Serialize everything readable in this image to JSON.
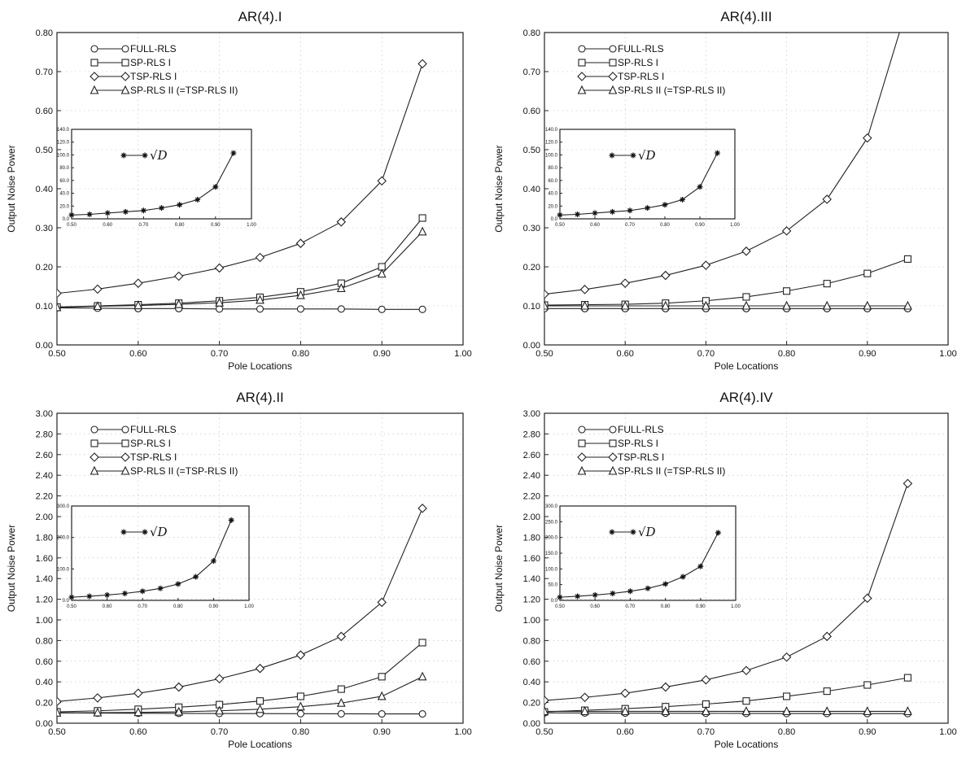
{
  "chart_data": [
    {
      "type": "line",
      "title": "AR(4).I",
      "xlabel": "Pole Locations",
      "ylabel": "Output Noise Power",
      "xlim": [
        0.5,
        1.0
      ],
      "ylim": [
        0,
        0.8
      ],
      "xticks": [
        "0.50",
        "0.60",
        "0.70",
        "0.80",
        "0.90",
        "1.00"
      ],
      "yticks": [
        "0.00",
        "0.10",
        "0.20",
        "0.30",
        "0.40",
        "0.50",
        "0.60",
        "0.70",
        "0.80"
      ],
      "grid": true,
      "legend_position": "top-left",
      "x": [
        0.5,
        0.55,
        0.6,
        0.65,
        0.7,
        0.75,
        0.8,
        0.85,
        0.9,
        0.95
      ],
      "series": [
        {
          "name": "FULL-RLS",
          "marker": "circle",
          "values": [
            0.095,
            0.094,
            0.093,
            0.093,
            0.092,
            0.092,
            0.092,
            0.092,
            0.091,
            0.091
          ]
        },
        {
          "name": "SP-RLS I",
          "marker": "square",
          "values": [
            0.097,
            0.1,
            0.103,
            0.107,
            0.113,
            0.122,
            0.136,
            0.158,
            0.2,
            0.325
          ]
        },
        {
          "name": "TSP-RLS I",
          "marker": "diamond",
          "values": [
            0.132,
            0.143,
            0.158,
            0.176,
            0.197,
            0.224,
            0.26,
            0.315,
            0.42,
            0.72
          ]
        },
        {
          "name": "SP-RLS II  (=TSP-RLS II)",
          "marker": "triangle",
          "values": [
            0.096,
            0.099,
            0.101,
            0.104,
            0.108,
            0.115,
            0.127,
            0.145,
            0.182,
            0.29
          ]
        }
      ],
      "inset": {
        "legend": "√D",
        "marker": "star",
        "xlim": [
          0.5,
          1.0
        ],
        "ylim": [
          0,
          140
        ],
        "xticks": [
          "0.50",
          "0.60",
          "0.70",
          "0.80",
          "0.90",
          "1.00"
        ],
        "yticks": [
          "0.0",
          "20.0",
          "40.0",
          "60.0",
          "80.0",
          "100.0",
          "120.0",
          "140.0"
        ],
        "x": [
          0.5,
          0.55,
          0.6,
          0.65,
          0.7,
          0.75,
          0.8,
          0.85,
          0.9,
          0.95
        ],
        "values": [
          6,
          7,
          9,
          11,
          13,
          17,
          22,
          30,
          50,
          103
        ]
      }
    },
    {
      "type": "line",
      "title": "AR(4).III",
      "xlabel": "Pole Locations",
      "ylabel": "Output Noise Power",
      "xlim": [
        0.5,
        1.0
      ],
      "ylim": [
        0,
        0.8
      ],
      "xticks": [
        "0.50",
        "0.60",
        "0.70",
        "0.80",
        "0.90",
        "1.00"
      ],
      "yticks": [
        "0.00",
        "0.10",
        "0.20",
        "0.30",
        "0.40",
        "0.50",
        "0.60",
        "0.70",
        "0.80"
      ],
      "grid": true,
      "legend_position": "top-left",
      "x": [
        0.5,
        0.55,
        0.6,
        0.65,
        0.7,
        0.75,
        0.8,
        0.85,
        0.9,
        0.95
      ],
      "series": [
        {
          "name": "FULL-RLS",
          "marker": "circle",
          "values": [
            0.093,
            0.093,
            0.093,
            0.093,
            0.093,
            0.093,
            0.093,
            0.093,
            0.093,
            0.093
          ]
        },
        {
          "name": "SP-RLS I",
          "marker": "square",
          "values": [
            0.102,
            0.103,
            0.104,
            0.107,
            0.113,
            0.123,
            0.138,
            0.157,
            0.183,
            0.22
          ]
        },
        {
          "name": "TSP-RLS I",
          "marker": "diamond",
          "values": [
            0.13,
            0.142,
            0.158,
            0.178,
            0.204,
            0.24,
            0.292,
            0.373,
            0.53,
            0.87
          ]
        },
        {
          "name": "SP-RLS II  (=TSP-RLS II)",
          "marker": "triangle",
          "values": [
            0.1,
            0.1,
            0.1,
            0.1,
            0.1,
            0.1,
            0.1,
            0.1,
            0.1,
            0.1
          ]
        }
      ],
      "inset": {
        "legend": "√D",
        "marker": "star",
        "xlim": [
          0.5,
          1.0
        ],
        "ylim": [
          0,
          140
        ],
        "xticks": [
          "0.50",
          "0.60",
          "0.70",
          "0.80",
          "0.90",
          "1.00"
        ],
        "yticks": [
          "0.0",
          "20.0",
          "40.0",
          "60.0",
          "80.0",
          "100.0",
          "120.0",
          "140.0"
        ],
        "x": [
          0.5,
          0.55,
          0.6,
          0.65,
          0.7,
          0.75,
          0.8,
          0.85,
          0.9,
          0.95
        ],
        "values": [
          6,
          7,
          9,
          11,
          13,
          17,
          22,
          30,
          50,
          103
        ]
      }
    },
    {
      "type": "line",
      "title": "AR(4).II",
      "xlabel": "Pole Locations",
      "ylabel": "Output Noise Power",
      "xlim": [
        0.5,
        1.0
      ],
      "ylim": [
        0,
        3.0
      ],
      "xticks": [
        "0.50",
        "0.60",
        "0.70",
        "0.80",
        "0.90",
        "1.00"
      ],
      "yticks": [
        "0.00",
        "0.20",
        "0.40",
        "0.60",
        "0.80",
        "1.00",
        "1.20",
        "1.40",
        "1.60",
        "1.80",
        "2.00",
        "2.20",
        "2.40",
        "2.60",
        "2.80",
        "3.00"
      ],
      "grid": true,
      "legend_position": "top-left",
      "x": [
        0.5,
        0.55,
        0.6,
        0.65,
        0.7,
        0.75,
        0.8,
        0.85,
        0.9,
        0.95
      ],
      "series": [
        {
          "name": "FULL-RLS",
          "marker": "circle",
          "values": [
            0.1,
            0.098,
            0.096,
            0.095,
            0.094,
            0.093,
            0.092,
            0.091,
            0.09,
            0.09
          ]
        },
        {
          "name": "SP-RLS I",
          "marker": "square",
          "values": [
            0.11,
            0.12,
            0.135,
            0.155,
            0.18,
            0.215,
            0.26,
            0.33,
            0.45,
            0.78
          ]
        },
        {
          "name": "TSP-RLS I",
          "marker": "diamond",
          "values": [
            0.21,
            0.245,
            0.29,
            0.35,
            0.43,
            0.53,
            0.66,
            0.84,
            1.17,
            2.08
          ]
        },
        {
          "name": "SP-RLS II  (=TSP-RLS II)",
          "marker": "triangle",
          "values": [
            0.1,
            0.102,
            0.105,
            0.11,
            0.12,
            0.135,
            0.16,
            0.195,
            0.26,
            0.45
          ]
        }
      ],
      "inset": {
        "legend": "√D",
        "marker": "star",
        "xlim": [
          0.5,
          1.0
        ],
        "ylim": [
          0,
          300
        ],
        "xticks": [
          "0.50",
          "0.60",
          "0.70",
          "0.80",
          "0.90",
          "1.00"
        ],
        "yticks": [
          "0.0",
          "100.0",
          "200.0",
          "300.0"
        ],
        "x": [
          0.5,
          0.55,
          0.6,
          0.65,
          0.7,
          0.75,
          0.8,
          0.85,
          0.9,
          0.95
        ],
        "values": [
          10,
          13,
          17,
          22,
          29,
          38,
          52,
          75,
          125,
          255
        ]
      }
    },
    {
      "type": "line",
      "title": "AR(4).IV",
      "xlabel": "Pole Locations",
      "ylabel": "Output Noise Power",
      "xlim": [
        0.5,
        1.0
      ],
      "ylim": [
        0,
        3.0
      ],
      "xticks": [
        "0.50",
        "0.60",
        "0.70",
        "0.80",
        "0.90",
        "1.00"
      ],
      "yticks": [
        "0.00",
        "0.20",
        "0.40",
        "0.60",
        "0.80",
        "1.00",
        "1.20",
        "1.40",
        "1.60",
        "1.80",
        "2.00",
        "2.20",
        "2.40",
        "2.60",
        "2.80",
        "3.00"
      ],
      "grid": true,
      "legend_position": "top-left",
      "x": [
        0.5,
        0.55,
        0.6,
        0.65,
        0.7,
        0.75,
        0.8,
        0.85,
        0.9,
        0.95
      ],
      "series": [
        {
          "name": "FULL-RLS",
          "marker": "circle",
          "values": [
            0.1,
            0.099,
            0.098,
            0.097,
            0.096,
            0.095,
            0.094,
            0.094,
            0.093,
            0.093
          ]
        },
        {
          "name": "SP-RLS I",
          "marker": "square",
          "values": [
            0.11,
            0.125,
            0.14,
            0.16,
            0.185,
            0.215,
            0.26,
            0.31,
            0.37,
            0.44
          ]
        },
        {
          "name": "TSP-RLS I",
          "marker": "diamond",
          "values": [
            0.22,
            0.25,
            0.29,
            0.35,
            0.42,
            0.51,
            0.64,
            0.84,
            1.21,
            2.32
          ]
        },
        {
          "name": "SP-RLS II  (=TSP-RLS II)",
          "marker": "triangle",
          "values": [
            0.115,
            0.115,
            0.115,
            0.115,
            0.115,
            0.115,
            0.115,
            0.115,
            0.115,
            0.115
          ]
        }
      ],
      "inset": {
        "legend": "√D",
        "marker": "star",
        "xlim": [
          0.5,
          1.0
        ],
        "ylim": [
          0,
          300
        ],
        "xticks": [
          "0.50",
          "0.60",
          "0.70",
          "0.80",
          "0.90",
          "1.00"
        ],
        "yticks": [
          "0.0",
          "50.0",
          "100.0",
          "150.0",
          "200.0",
          "250.0",
          "300.0"
        ],
        "x": [
          0.5,
          0.55,
          0.6,
          0.65,
          0.7,
          0.75,
          0.8,
          0.85,
          0.9,
          0.95
        ],
        "values": [
          10,
          13,
          17,
          22,
          29,
          38,
          52,
          75,
          108,
          215
        ]
      }
    }
  ]
}
